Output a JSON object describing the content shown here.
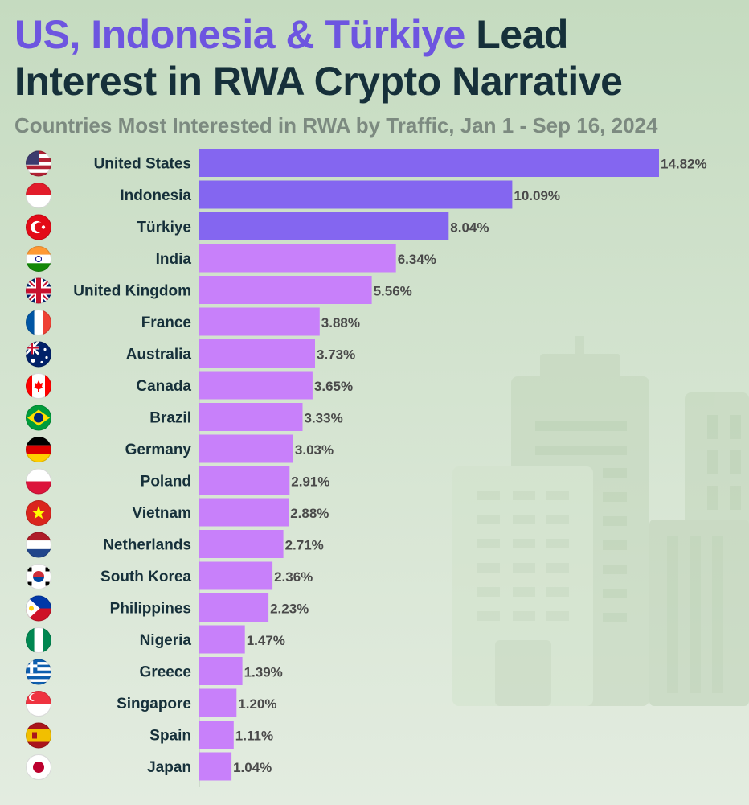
{
  "title": {
    "highlight": "US, Indonesia & Türkiye",
    "rest_line1": " Lead",
    "line2": "Interest in RWA Crypto Narrative"
  },
  "subtitle": "Countries Most Interested in RWA by Traffic, Jan 1 - Sep 16, 2024",
  "colors": {
    "top3": "#8466f0",
    "others": "#c880fa",
    "label": "#16303a",
    "value": "#4a4a4a"
  },
  "chart_data": {
    "type": "bar",
    "orientation": "horizontal",
    "value_suffix": "%",
    "highlight_count": 3,
    "categories": [
      "United States",
      "Indonesia",
      "Türkiye",
      "India",
      "United Kingdom",
      "France",
      "Australia",
      "Canada",
      "Brazil",
      "Germany",
      "Poland",
      "Vietnam",
      "Netherlands",
      "South Korea",
      "Philippines",
      "Nigeria",
      "Greece",
      "Singapore",
      "Spain",
      "Japan"
    ],
    "values": [
      14.82,
      10.09,
      8.04,
      6.34,
      5.56,
      3.88,
      3.73,
      3.65,
      3.33,
      3.03,
      2.91,
      2.88,
      2.71,
      2.36,
      2.23,
      1.47,
      1.39,
      1.2,
      1.11,
      1.04
    ],
    "value_labels": [
      "14.82%",
      "10.09%",
      "8.04%",
      "6.34%",
      "5.56%",
      "3.88%",
      "3.73%",
      "3.65%",
      "3.33%",
      "3.03%",
      "2.91%",
      "2.88%",
      "2.71%",
      "2.36%",
      "2.23%",
      "1.47%",
      "1.39%",
      "1.20%",
      "1.11%",
      "1.04%"
    ],
    "flags": [
      "us-flag-icon",
      "indonesia-flag-icon",
      "turkiye-flag-icon",
      "india-flag-icon",
      "uk-flag-icon",
      "france-flag-icon",
      "australia-flag-icon",
      "canada-flag-icon",
      "brazil-flag-icon",
      "germany-flag-icon",
      "poland-flag-icon",
      "vietnam-flag-icon",
      "netherlands-flag-icon",
      "south-korea-flag-icon",
      "philippines-flag-icon",
      "nigeria-flag-icon",
      "greece-flag-icon",
      "singapore-flag-icon",
      "spain-flag-icon",
      "japan-flag-icon"
    ],
    "xlim": [
      0,
      14.82
    ],
    "grid": false,
    "legend": "none"
  }
}
